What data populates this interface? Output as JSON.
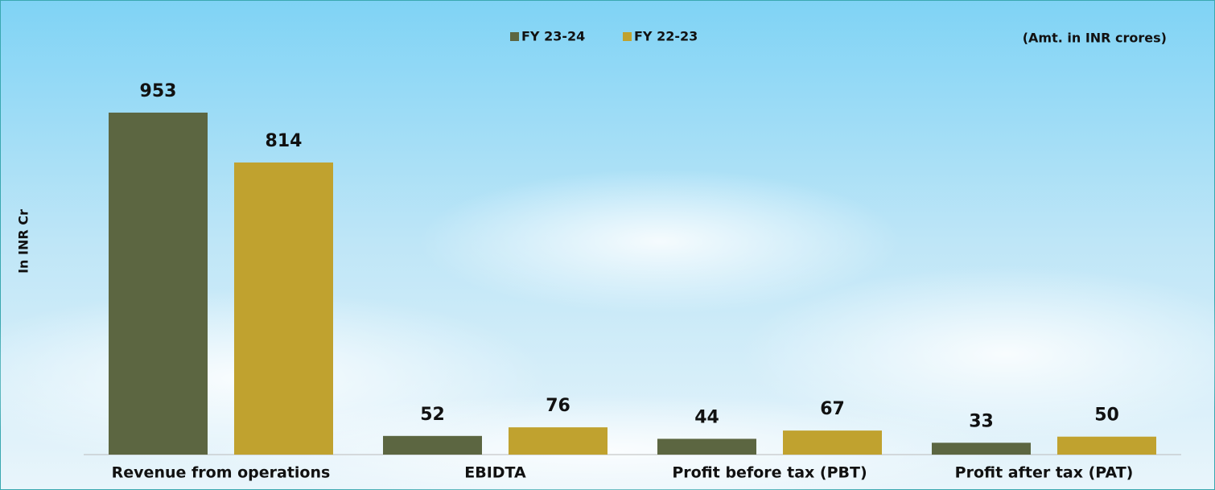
{
  "chart_data": {
    "type": "bar",
    "note": "(Amt. in INR crores)",
    "y_label": "In INR Cr",
    "categories": [
      "Revenue from operations",
      "EBIDTA",
      "Profit before tax (PBT)",
      "Profit after tax (PAT)"
    ],
    "series": [
      {
        "name": "FY 23-24",
        "color": "#5c6641",
        "values": [
          953,
          52,
          44,
          33
        ]
      },
      {
        "name": "FY 22-23",
        "color": "#c0a22f",
        "values": [
          814,
          76,
          67,
          50
        ]
      }
    ],
    "ylim": [
      0,
      1000
    ],
    "legend": "top"
  }
}
